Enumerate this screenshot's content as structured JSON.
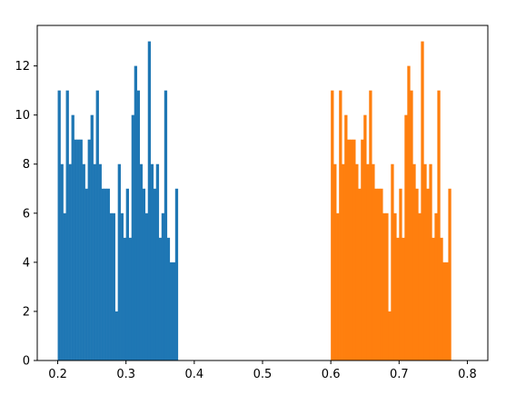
{
  "chart_data": {
    "type": "bar",
    "title": "",
    "xlabel": "",
    "ylabel": "",
    "xlim": [
      0.17,
      0.83
    ],
    "ylim": [
      0,
      13.65
    ],
    "grid": false,
    "bin_width": 0.004,
    "x_ticks": [
      0.2,
      0.3,
      0.4,
      0.5,
      0.6,
      0.7,
      0.8
    ],
    "x_tick_labels": [
      "0.2",
      "0.3",
      "0.4",
      "0.5",
      "0.6",
      "0.7",
      "0.8"
    ],
    "y_ticks": [
      0,
      2,
      4,
      6,
      8,
      10,
      12
    ],
    "y_tick_labels": [
      "0",
      "2",
      "4",
      "6",
      "8",
      "10",
      "12"
    ],
    "series": [
      {
        "color": "#1f77b4",
        "bin_start": 0.2,
        "values": [
          11,
          8,
          6,
          11,
          8,
          10,
          9,
          9,
          9,
          8,
          7,
          9,
          10,
          8,
          11,
          8,
          7,
          7,
          7,
          6,
          6,
          2,
          8,
          6,
          5,
          7,
          5,
          10,
          12,
          11,
          8,
          7,
          6,
          13,
          8,
          7,
          8,
          5,
          6,
          11,
          5,
          4,
          4,
          7
        ]
      },
      {
        "color": "#ff7f0e",
        "bin_start": 0.6,
        "values": [
          11,
          8,
          6,
          11,
          8,
          10,
          9,
          9,
          9,
          8,
          7,
          9,
          10,
          8,
          11,
          8,
          7,
          7,
          7,
          6,
          6,
          2,
          8,
          6,
          5,
          7,
          5,
          10,
          12,
          11,
          8,
          7,
          6,
          13,
          8,
          7,
          8,
          5,
          6,
          11,
          5,
          4,
          4,
          7
        ]
      }
    ]
  }
}
